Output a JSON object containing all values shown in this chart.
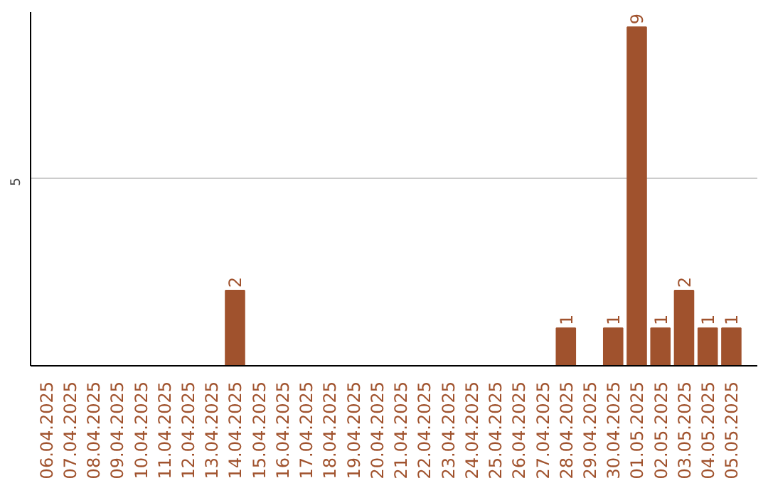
{
  "chart_data": {
    "type": "bar",
    "categories": [
      "06.04.2025",
      "07.04.2025",
      "08.04.2025",
      "09.04.2025",
      "10.04.2025",
      "11.04.2025",
      "12.04.2025",
      "13.04.2025",
      "14.04.2025",
      "15.04.2025",
      "16.04.2025",
      "17.04.2025",
      "18.04.2025",
      "19.04.2025",
      "20.04.2025",
      "21.04.2025",
      "22.04.2025",
      "23.04.2025",
      "24.04.2025",
      "25.04.2025",
      "26.04.2025",
      "27.04.2025",
      "28.04.2025",
      "29.04.2025",
      "30.04.2025",
      "01.05.2025",
      "02.05.2025",
      "03.05.2025",
      "04.05.2025",
      "05.05.2025"
    ],
    "values": [
      0,
      0,
      0,
      0,
      0,
      0,
      0,
      0,
      2,
      0,
      0,
      0,
      0,
      0,
      0,
      0,
      0,
      0,
      0,
      0,
      0,
      0,
      1,
      0,
      1,
      9,
      1,
      2,
      1,
      1
    ],
    "value_labels": [
      null,
      null,
      null,
      null,
      null,
      null,
      null,
      null,
      "2",
      null,
      null,
      null,
      null,
      null,
      null,
      null,
      null,
      null,
      null,
      null,
      null,
      null,
      "1",
      null,
      "1",
      "9",
      "1",
      "2",
      "1",
      "1"
    ],
    "color": "#a0522d",
    "ylim": [
      0,
      9.4
    ],
    "yticks": [
      5
    ],
    "grid": "y"
  }
}
